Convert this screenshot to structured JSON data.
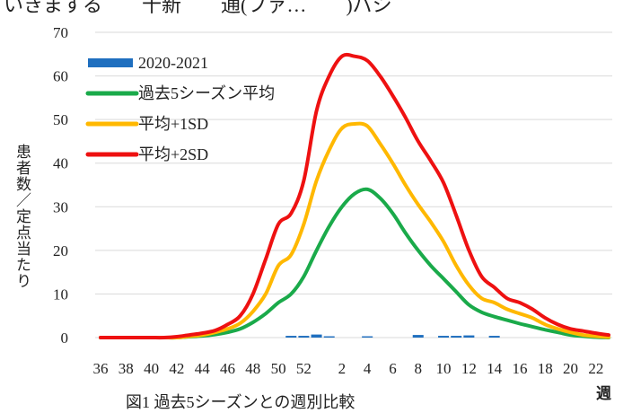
{
  "captions": {
    "top": "いきまする　　十新　　通(ファ…　　)パシ",
    "bottom": "図1 過去5シーズンとの週別比較"
  },
  "chart_data": {
    "type": "line",
    "title": "",
    "xlabel": "週",
    "ylabel": "患者数／定点当たり",
    "ylim": [
      0,
      70
    ],
    "yticks": [
      0,
      10,
      20,
      30,
      40,
      50,
      60,
      70
    ],
    "xtick_labels": [
      "36",
      "38",
      "40",
      "42",
      "44",
      "46",
      "48",
      "50",
      "52",
      "2",
      "4",
      "6",
      "8",
      "10",
      "12",
      "14",
      "16",
      "18",
      "20",
      "22"
    ],
    "grid": true,
    "legend_position": "top-left",
    "colors": {
      "bar": "#1f6fbf",
      "avg": "#1aaa4a",
      "sd1": "#ffb800",
      "sd2": "#ee1111"
    },
    "weeks": [
      "36",
      "37",
      "38",
      "39",
      "40",
      "41",
      "42",
      "43",
      "44",
      "45",
      "46",
      "47",
      "48",
      "49",
      "50",
      "51",
      "52",
      "53",
      "1",
      "2",
      "3",
      "4",
      "5",
      "6",
      "7",
      "8",
      "9",
      "10",
      "11",
      "12",
      "13",
      "14",
      "15",
      "16",
      "17",
      "18",
      "19",
      "20",
      "21",
      "22",
      "23"
    ],
    "series": [
      {
        "name": "2020-2021",
        "kind": "bar",
        "values": [
          0,
          0,
          0,
          0,
          0,
          0,
          0.3,
          0,
          0,
          0,
          0,
          0,
          0,
          0,
          0,
          0.4,
          0.4,
          0.7,
          0.3,
          0,
          0,
          0.3,
          0,
          0,
          0,
          0.6,
          0,
          0.4,
          0.4,
          0.5,
          0,
          0.4,
          0,
          0,
          0,
          0,
          0,
          0,
          0,
          0,
          0
        ]
      },
      {
        "name": "過去5シーズン平均",
        "kind": "line",
        "values": [
          0,
          0,
          0,
          0,
          0,
          0,
          0,
          0.2,
          0.4,
          0.7,
          1.2,
          2.0,
          3.5,
          5.5,
          8.0,
          10.0,
          14.0,
          20.0,
          25.5,
          30.0,
          33.0,
          34.0,
          32.0,
          28.5,
          24.0,
          20.0,
          16.5,
          13.5,
          10.5,
          7.5,
          5.8,
          4.8,
          4.0,
          3.2,
          2.5,
          1.8,
          1.2,
          0.6,
          0.3,
          0.1,
          0
        ]
      },
      {
        "name": "平均+1SD",
        "kind": "line",
        "values": [
          0,
          0,
          0,
          0,
          0,
          0,
          0,
          0.3,
          0.6,
          1.2,
          2.0,
          3.3,
          6.0,
          10.0,
          16.5,
          19.0,
          26.0,
          36.0,
          43.0,
          48.0,
          49.0,
          48.5,
          44.5,
          40.0,
          35.0,
          30.5,
          26.5,
          22.0,
          16.5,
          12.0,
          9.0,
          8.0,
          6.5,
          5.5,
          4.5,
          3.0,
          2.0,
          1.2,
          0.6,
          0.3,
          0.1
        ]
      },
      {
        "name": "平均+2SD",
        "kind": "line",
        "values": [
          0,
          0,
          0,
          0,
          0,
          0,
          0.2,
          0.6,
          1.0,
          1.6,
          3.0,
          5.0,
          10.0,
          18.0,
          26.0,
          28.5,
          36.0,
          52.0,
          60.0,
          64.5,
          64.5,
          63.5,
          60.0,
          55.5,
          50.5,
          45.0,
          40.5,
          35.5,
          28.0,
          20.0,
          14.0,
          11.5,
          9.0,
          8.0,
          6.5,
          4.5,
          3.0,
          2.0,
          1.5,
          1.0,
          0.6
        ]
      }
    ]
  }
}
